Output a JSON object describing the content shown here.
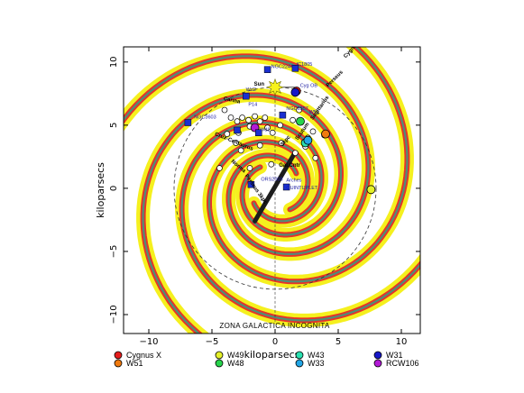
{
  "chart_data": {
    "type": "scatter",
    "xlabel": "kiloparsecs",
    "ylabel": "kiloparsecs",
    "xlim": [
      -12,
      11.5
    ],
    "ylim": [
      -11.5,
      11.2
    ],
    "x_ticks": [
      -10,
      -5,
      0,
      5,
      10
    ],
    "y_ticks": [
      -10,
      -5,
      0,
      5,
      10
    ],
    "bottom_label": "ZONA GALACTICA INCOGNITA",
    "galactic_center_label": "Gal.Cntr",
    "sun": {
      "label": "Sun",
      "x": 0.0,
      "y": 8.0
    },
    "arm_labels": [
      {
        "text": "Cygnus",
        "x": 5.6,
        "y": 10.3,
        "rot": 48
      },
      {
        "text": "Perseus",
        "x": 4.2,
        "y": 8.0,
        "rot": 45
      },
      {
        "text": "Carina",
        "x": -4.1,
        "y": 7.0,
        "rot": -12
      },
      {
        "text": "Crux-Centaurus",
        "x": -4.8,
        "y": 4.2,
        "rot": -22
      },
      {
        "text": "Sagittarius",
        "x": 3.0,
        "y": 5.4,
        "rot": 55
      },
      {
        "text": "Norma",
        "x": -3.5,
        "y": 2.1,
        "rot": -40
      },
      {
        "text": "Scutum",
        "x": 1.8,
        "y": 3.8,
        "rot": 55
      },
      {
        "text": "3kpc",
        "x": 0.6,
        "y": 3.3,
        "rot": 50
      },
      {
        "text": "Perseus 3kpc",
        "x": -2.4,
        "y": 1.0,
        "rot": -55
      }
    ],
    "labeled_objects": [
      {
        "name": "IC1805",
        "x": 1.4,
        "y": 9.5
      },
      {
        "name": "NGC2244",
        "x": -0.6,
        "y": 9.3
      },
      {
        "name": "Wd2",
        "x": -2.6,
        "y": 7.5
      },
      {
        "name": "Cyg OB",
        "x": 1.7,
        "y": 7.8
      },
      {
        "name": "NGC3603",
        "x": -6.7,
        "y": 5.3
      },
      {
        "name": "W51",
        "x": 2.4,
        "y": 5.7
      },
      {
        "name": "NGC6357",
        "x": 0.6,
        "y": 6.0
      },
      {
        "name": "Wd1",
        "x": -1.5,
        "y": 4.3
      },
      {
        "name": "ORS2008",
        "x": -1.4,
        "y": 0.4
      },
      {
        "name": "Arches",
        "x": 0.6,
        "y": 0.3
      },
      {
        "name": "QUINTUPLET",
        "x": 0.6,
        "y": -0.3
      },
      {
        "name": "P14",
        "x": -2.4,
        "y": 6.3
      }
    ],
    "blue_squares": [
      {
        "x": 1.6,
        "y": 9.5
      },
      {
        "x": -0.6,
        "y": 9.4
      },
      {
        "x": -2.3,
        "y": 7.3
      },
      {
        "x": -6.9,
        "y": 5.2
      },
      {
        "x": 0.6,
        "y": 5.8
      },
      {
        "x": -1.3,
        "y": 4.4
      },
      {
        "x": -3.0,
        "y": 4.6
      },
      {
        "x": -1.9,
        "y": 0.3
      },
      {
        "x": 0.9,
        "y": 0.1
      }
    ],
    "open_circles": [
      {
        "x": -3.5,
        "y": 5.6
      },
      {
        "x": -3.0,
        "y": 5.3
      },
      {
        "x": -2.6,
        "y": 5.6
      },
      {
        "x": -2.1,
        "y": 5.4
      },
      {
        "x": -1.6,
        "y": 5.7
      },
      {
        "x": -1.2,
        "y": 5.3
      },
      {
        "x": -0.8,
        "y": 5.6
      },
      {
        "x": -3.8,
        "y": 4.3
      },
      {
        "x": -2.9,
        "y": 4.4
      },
      {
        "x": -2.0,
        "y": 4.9
      },
      {
        "x": -0.6,
        "y": 4.8
      },
      {
        "x": 0.4,
        "y": 5.0
      },
      {
        "x": 1.4,
        "y": 5.4
      },
      {
        "x": 3.0,
        "y": 4.5
      },
      {
        "x": 3.9,
        "y": 4.2
      },
      {
        "x": 2.6,
        "y": 4.0
      },
      {
        "x": -3.1,
        "y": 3.6
      },
      {
        "x": -1.2,
        "y": 3.4
      },
      {
        "x": 0.5,
        "y": 3.6
      },
      {
        "x": 2.4,
        "y": 3.3
      },
      {
        "x": -2.7,
        "y": 3.0
      },
      {
        "x": 1.6,
        "y": 2.8
      },
      {
        "x": -0.3,
        "y": 1.9
      },
      {
        "x": -2.0,
        "y": 1.6
      },
      {
        "x": 3.2,
        "y": 2.4
      },
      {
        "x": -4.4,
        "y": 1.6
      },
      {
        "x": 1.9,
        "y": 6.2
      },
      {
        "x": -0.2,
        "y": 4.4
      },
      {
        "x": -4.0,
        "y": 6.2
      }
    ],
    "legend": [
      {
        "name": "Cygnus X",
        "color": "#e51d1d",
        "x": 1.7,
        "y": 7.7
      },
      {
        "name": "W51",
        "color": "#f07a0e",
        "x": 4.0,
        "y": 4.3
      },
      {
        "name": "W49",
        "color": "#e4f02a",
        "x": 7.6,
        "y": -0.1
      },
      {
        "name": "W48",
        "color": "#27d44c",
        "x": 2.0,
        "y": 5.3
      },
      {
        "name": "W43",
        "color": "#2ae0b0",
        "x": 2.4,
        "y": 3.6
      },
      {
        "name": "W33",
        "color": "#22a6e6",
        "x": 2.6,
        "y": 3.8
      },
      {
        "name": "W31",
        "color": "#1717c8",
        "x": 1.6,
        "y": 7.6
      },
      {
        "name": "RCW106",
        "color": "#b21ad6",
        "x": -1.6,
        "y": 4.8
      }
    ],
    "colors": {
      "arm_halo": "#f5f01e",
      "arm_outer": "#e63329",
      "arm_inner": "#4f8e77",
      "bar": "#1c1c1c"
    }
  }
}
